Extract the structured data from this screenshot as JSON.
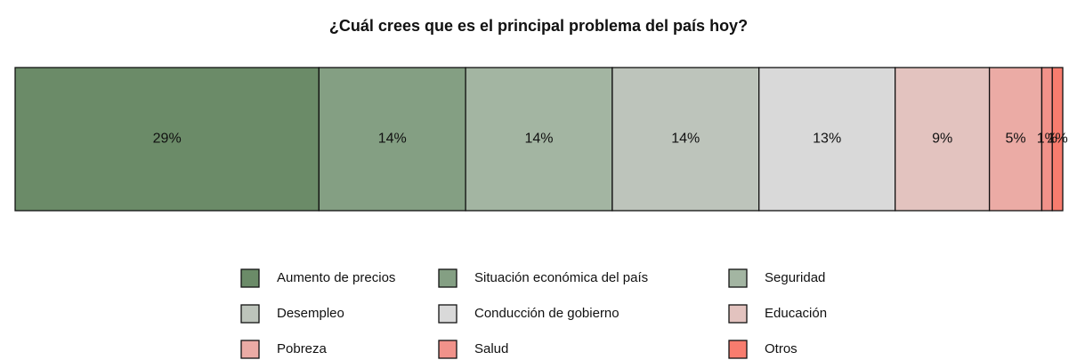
{
  "chart_data": {
    "type": "stacked_bar_100",
    "title": "¿Cuál crees que es el principal problema del país hoy?",
    "series": [
      {
        "name": "Aumento de precios",
        "color": "#6b8b68",
        "values": [
          29
        ],
        "value_labels": [
          "29%"
        ]
      },
      {
        "name": "Situación económica del país",
        "color": "#849f83",
        "values": [
          14
        ],
        "value_labels": [
          "14%"
        ]
      },
      {
        "name": "Seguridad",
        "color": "#a3b5a2",
        "values": [
          14
        ],
        "value_labels": [
          "14%"
        ]
      },
      {
        "name": "Desempleo",
        "color": "#bdc4bb",
        "values": [
          14
        ],
        "value_labels": [
          "14%"
        ]
      },
      {
        "name": "Conducción de gobierno",
        "color": "#d9d9d9",
        "values": [
          13
        ],
        "value_labels": [
          "13%"
        ]
      },
      {
        "name": "Educación",
        "color": "#e3c3bf",
        "values": [
          9
        ],
        "value_labels": [
          "9%"
        ]
      },
      {
        "name": "Pobreza",
        "color": "#ebaba5",
        "values": [
          5
        ],
        "value_labels": [
          "5%"
        ]
      },
      {
        "name": "Salud",
        "color": "#f1928a",
        "values": [
          1
        ],
        "value_labels": [
          "1%"
        ]
      },
      {
        "name": "Otros",
        "color": "#f87c6e",
        "values": [
          1
        ],
        "value_labels": [
          "1%"
        ]
      }
    ],
    "legend": "bottom"
  }
}
